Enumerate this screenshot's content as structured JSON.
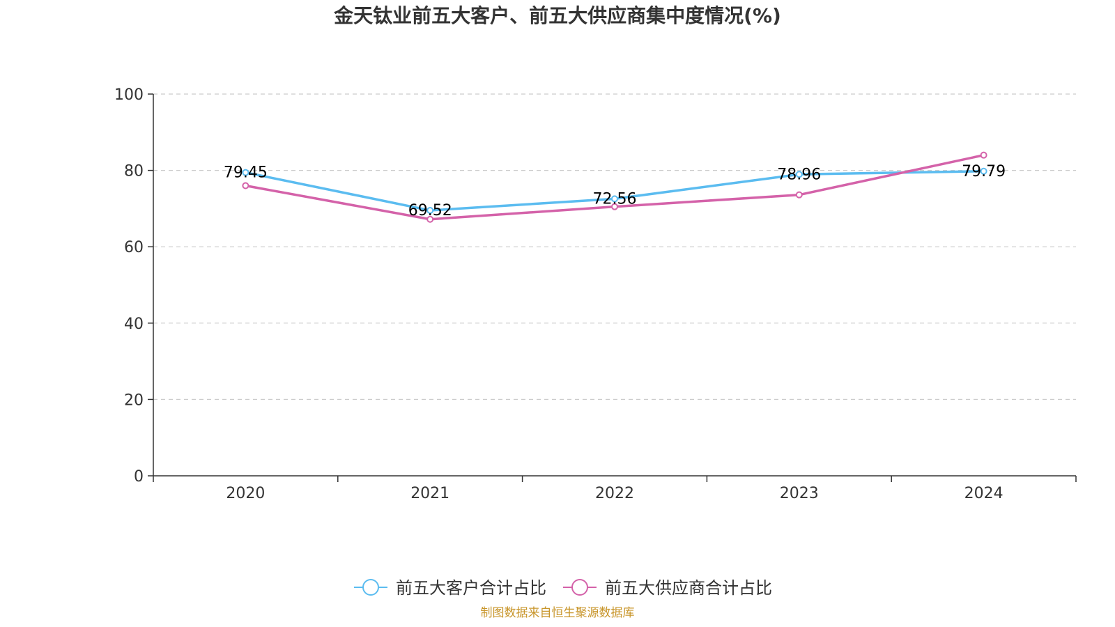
{
  "chart_data": {
    "type": "line",
    "title": "金天钛业前五大客户、前五大供应商集中度情况(%)",
    "xlabel": "",
    "ylabel": "",
    "categories": [
      "2020",
      "2021",
      "2022",
      "2023",
      "2024"
    ],
    "ylim": [
      0,
      100
    ],
    "yticks": [
      0,
      20,
      40,
      60,
      80,
      100
    ],
    "grid": true,
    "legend_position": "bottom-center",
    "series": [
      {
        "name": "前五大客户合计占比",
        "color": "#5bbcf0",
        "values": [
          79.45,
          69.52,
          72.56,
          78.96,
          79.79
        ],
        "labels": [
          "79.45",
          "69.52",
          "72.56",
          "78.96",
          "79.79"
        ]
      },
      {
        "name": "前五大供应商合计占比",
        "color": "#d462a9",
        "values": [
          76.0,
          67.2,
          70.5,
          73.6,
          84.0
        ]
      }
    ]
  },
  "source_note": "制图数据来自恒生聚源数据库"
}
